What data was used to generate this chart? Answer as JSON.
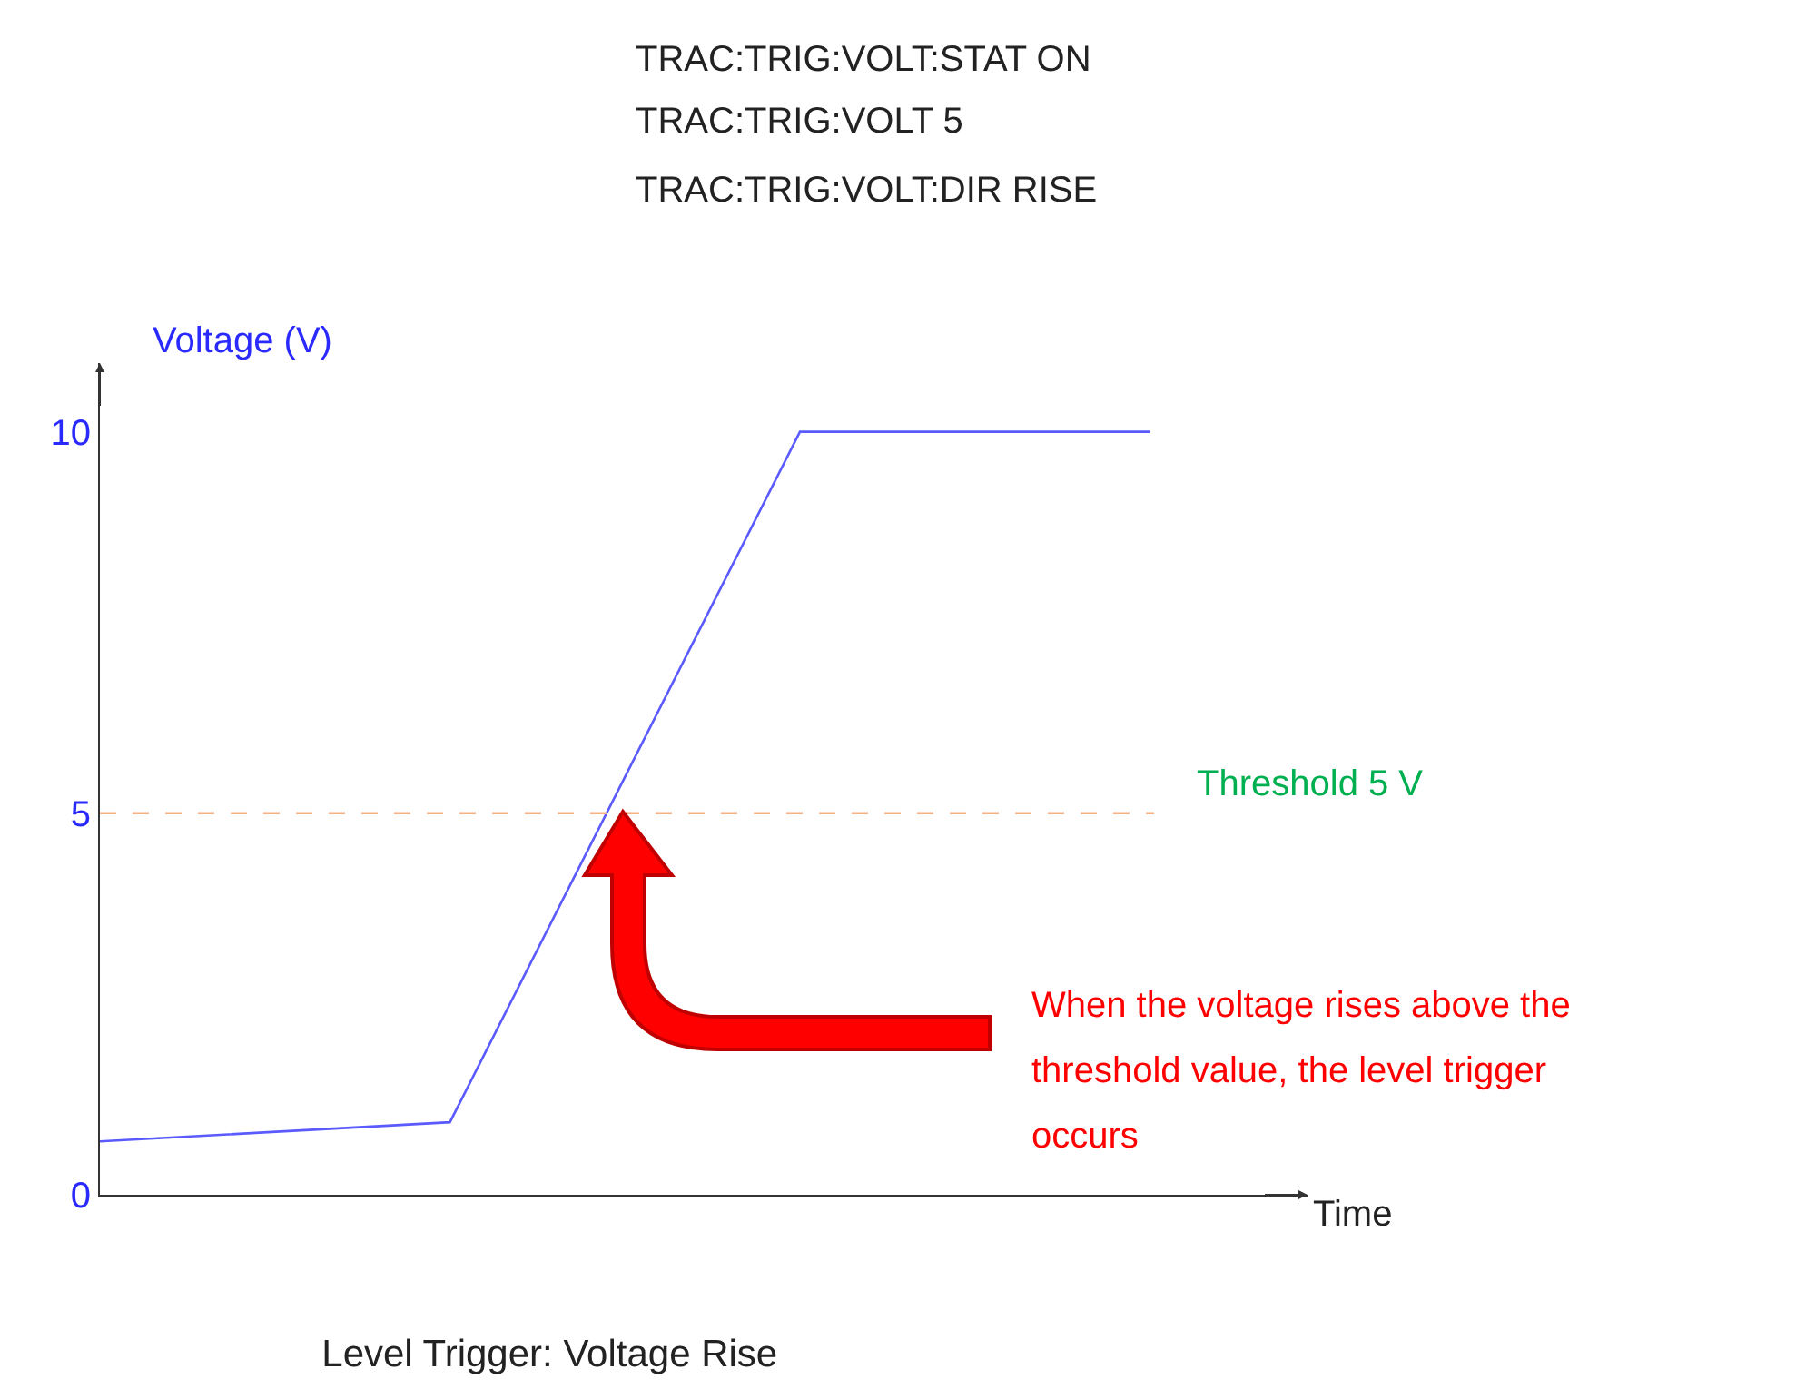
{
  "chart_data": {
    "type": "line",
    "title": "Level Trigger: Voltage Rise",
    "ylabel": "Voltage (V)",
    "xlabel": "Time",
    "categories": [
      null,
      null,
      null,
      null
    ],
    "series": [
      {
        "color": "#5a5aff",
        "values": [
          0.7,
          0.95,
          10,
          10
        ]
      }
    ],
    "ylim": [
      0,
      10.9
    ],
    "yticks": [
      0,
      5,
      10
    ],
    "ref_lines": [
      {
        "axis": "y",
        "value": 5,
        "label": "Threshold 5 V",
        "color": "#f4b183",
        "line_style": "dashed"
      }
    ],
    "annotations": [
      "TRAC:TRIG:VOLT:STAT ON",
      "TRAC:TRIG:VOLT 5",
      "TRAC:TRIG:VOLT:DIR RISE",
      "When the voltage rises above the threshold value, the level trigger occurs"
    ],
    "tick_labels": "y",
    "grid": false,
    "marker": "none",
    "line_style": "solid"
  }
}
